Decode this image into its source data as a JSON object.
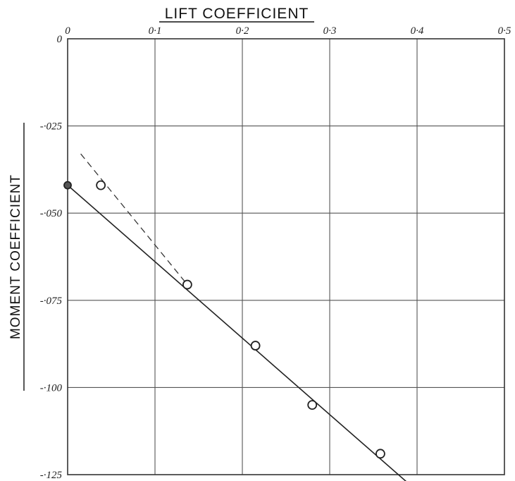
{
  "chart_data": {
    "type": "scatter",
    "title": "",
    "xlabel": "LIFT COEFFICIENT",
    "ylabel": "MOMENT COEFFICIENT",
    "xlim": [
      0,
      0.5
    ],
    "ylim": [
      -0.125,
      0
    ],
    "x_ticks": [
      0,
      0.1,
      0.2,
      0.3,
      0.4,
      0.5
    ],
    "x_tick_labels": [
      "0",
      "0·1",
      "0·2",
      "0·3",
      "0·4",
      "0·5"
    ],
    "y_ticks": [
      0,
      -0.025,
      -0.05,
      -0.075,
      -0.1,
      -0.125
    ],
    "y_tick_labels": [
      "0",
      "-·025",
      "-·050",
      "-·075",
      "-·100",
      "-·125"
    ],
    "x_axis_position": "top",
    "grid": true,
    "series": [
      {
        "values": [
          {
            "x": 0.0,
            "y": -0.042,
            "marker": "filled-circle"
          },
          {
            "x": 0.038,
            "y": -0.042,
            "marker": "open-circle"
          },
          {
            "x": 0.137,
            "y": -0.0705,
            "marker": "open-circle"
          },
          {
            "x": 0.215,
            "y": -0.088,
            "marker": "open-circle"
          },
          {
            "x": 0.28,
            "y": -0.105,
            "marker": "open-circle"
          },
          {
            "x": 0.358,
            "y": -0.119,
            "marker": "open-circle"
          }
        ]
      }
    ],
    "lines": [
      {
        "style": "solid",
        "points": [
          [
            0.0,
            -0.042
          ],
          [
            0.39,
            -0.1275
          ]
        ]
      },
      {
        "style": "dashed",
        "points": [
          [
            0.015,
            -0.033
          ],
          [
            0.137,
            -0.0705
          ]
        ]
      }
    ]
  }
}
